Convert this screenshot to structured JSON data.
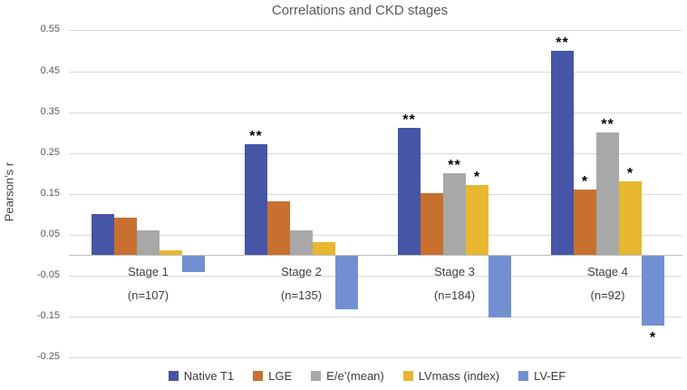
{
  "chart_data": {
    "type": "bar",
    "title": "Correlations and CKD stages",
    "ylabel": "Pearson’s r",
    "categories": [
      {
        "label": "Stage 1",
        "sublabel": "(n=107)"
      },
      {
        "label": "Stage 2",
        "sublabel": "(n=135)"
      },
      {
        "label": "Stage 3",
        "sublabel": "(n=184)"
      },
      {
        "label": "Stage 4",
        "sublabel": "(n=92)"
      }
    ],
    "yticks": [
      {
        "label": "0.55",
        "value": 0.55
      },
      {
        "label": "0.45",
        "value": 0.45
      },
      {
        "label": "0.35",
        "value": 0.35
      },
      {
        "label": "0.25",
        "value": 0.25
      },
      {
        "label": "0.15",
        "value": 0.15
      },
      {
        "label": "0.05",
        "value": 0.05
      },
      {
        "label": "-0.05",
        "value": -0.05
      },
      {
        "label": "-0.15",
        "value": -0.15
      },
      {
        "label": "-0.25",
        "value": -0.25
      }
    ],
    "ylim": [
      -0.25,
      0.55
    ],
    "grid": true,
    "legend_position": "bottom",
    "series": [
      {
        "name": "Native T1",
        "color": "#4655A6",
        "values": [
          0.1,
          0.27,
          0.31,
          0.5
        ],
        "significance": [
          "",
          "**",
          "**",
          "**"
        ]
      },
      {
        "name": "LGE",
        "color": "#C8702F",
        "values": [
          0.09,
          0.13,
          0.15,
          0.16
        ],
        "significance": [
          "",
          "",
          "",
          "*"
        ]
      },
      {
        "name": "E/e’(mean)",
        "color": "#A8A8A8",
        "values": [
          0.06,
          0.06,
          0.2,
          0.3
        ],
        "significance": [
          "",
          "",
          "**",
          "**"
        ]
      },
      {
        "name": "LVmass (index)",
        "color": "#E6B72F",
        "values": [
          0.01,
          0.03,
          0.17,
          0.18
        ],
        "significance": [
          "",
          "",
          "*",
          "*"
        ]
      },
      {
        "name": "LV-EF",
        "color": "#7290D1",
        "values": [
          -0.04,
          -0.13,
          -0.15,
          -0.17
        ],
        "significance": [
          "",
          "",
          "",
          "*"
        ]
      }
    ],
    "marker_color": "#000000",
    "gridline_color": "#D9D9D9",
    "axis_line_color": "#BFBFBF",
    "text_color": "#595959"
  }
}
